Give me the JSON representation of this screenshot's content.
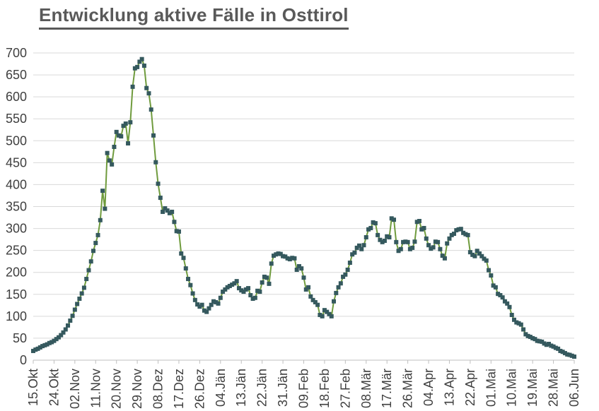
{
  "title": "Entwicklung aktive Fälle in Osttirol",
  "colors": {
    "line": "#6F9B3D",
    "marker": "#35595E",
    "grid": "#D9D9D9",
    "axis": "#BFBFBF",
    "label_text": "#3F3F3F",
    "title_text": "#595959",
    "background": "#FFFFFF"
  },
  "chart_data": {
    "type": "line",
    "title": "Entwicklung aktive Fälle in Osttirol",
    "xlabel": "",
    "ylabel": "",
    "ylim": [
      0,
      700
    ],
    "ytick_step": 50,
    "y_tick_labels": [
      "0",
      "50",
      "100",
      "150",
      "200",
      "250",
      "300",
      "350",
      "400",
      "450",
      "500",
      "550",
      "600",
      "650",
      "700"
    ],
    "x_tick_labels": [
      "15.Okt",
      "24.Okt",
      "02.Nov",
      "11.Nov",
      "20.Nov",
      "29.Nov",
      "08.Dez",
      "17.Dez",
      "26.Dez",
      "04.Jän",
      "13.Jän",
      "22.Jän",
      "31.Jän",
      "09.Feb",
      "18.Feb",
      "27.Feb",
      "08.Mär",
      "17.Mär",
      "26.Mär",
      "04.Apr",
      "13.Apr",
      "22.Apr",
      "01.Mai",
      "10.Mai",
      "19.Mai",
      "28.Mai",
      "06.Jun"
    ],
    "tick_interval_days": 9,
    "grid": true,
    "legend": false,
    "marker": "square",
    "series_name": "aktive Fälle",
    "values": [
      21,
      24,
      26,
      29,
      32,
      34,
      36,
      39,
      41,
      44,
      48,
      52,
      57,
      63,
      70,
      79,
      90,
      101,
      115,
      128,
      140,
      152,
      165,
      185,
      205,
      225,
      249,
      267,
      285,
      319,
      386,
      345,
      472,
      455,
      446,
      486,
      520,
      512,
      510,
      534,
      539,
      494,
      542,
      623,
      665,
      668,
      680,
      686,
      671,
      620,
      608,
      571,
      512,
      451,
      402,
      370,
      338,
      346,
      341,
      335,
      338,
      315,
      294,
      293,
      243,
      233,
      209,
      185,
      171,
      152,
      137,
      127,
      122,
      126,
      113,
      110,
      118,
      126,
      134,
      132,
      129,
      142,
      156,
      161,
      166,
      169,
      172,
      175,
      180,
      164,
      159,
      156,
      161,
      164,
      148,
      140,
      142,
      158,
      156,
      177,
      190,
      188,
      174,
      220,
      238,
      241,
      243,
      242,
      237,
      236,
      232,
      230,
      233,
      232,
      206,
      214,
      209,
      188,
      161,
      166,
      145,
      137,
      132,
      126,
      103,
      100,
      114,
      110,
      105,
      100,
      134,
      153,
      166,
      175,
      190,
      195,
      206,
      222,
      241,
      245,
      256,
      261,
      253,
      262,
      280,
      298,
      301,
      314,
      312,
      285,
      274,
      269,
      272,
      282,
      280,
      323,
      320,
      269,
      249,
      253,
      269,
      270,
      269,
      253,
      256,
      270,
      315,
      317,
      298,
      301,
      277,
      262,
      254,
      257,
      270,
      269,
      253,
      238,
      232,
      266,
      277,
      285,
      288,
      296,
      298,
      299,
      290,
      287,
      285,
      246,
      240,
      237,
      249,
      243,
      237,
      231,
      227,
      205,
      193,
      170,
      166,
      151,
      148,
      143,
      134,
      129,
      121,
      103,
      92,
      86,
      84,
      81,
      70,
      59,
      55,
      53,
      50,
      48,
      44,
      43,
      42,
      38,
      35,
      37,
      33,
      31,
      28,
      26,
      21,
      19,
      16,
      13,
      12,
      10,
      8
    ]
  }
}
